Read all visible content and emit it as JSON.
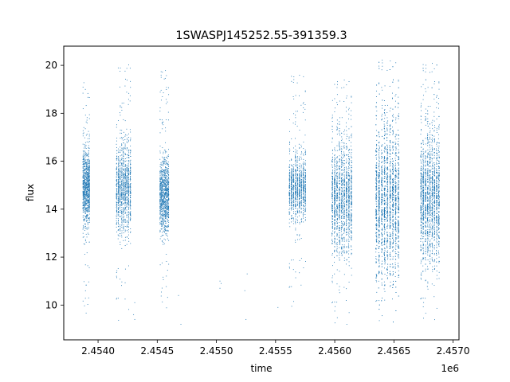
{
  "chart_data": {
    "type": "scatter",
    "title": "1SWASPJ145252.55-391359.3",
    "xlabel": "time",
    "ylabel": "flux",
    "x_offset_label": "1e6",
    "x_scale": 1000000,
    "xlim": [
      2.45371,
      2.45705
    ],
    "ylim": [
      8.55,
      20.8
    ],
    "x_ticks": [
      2.454,
      2.4545,
      2.455,
      2.4555,
      2.456,
      2.4565,
      2.457
    ],
    "x_tick_labels": [
      "2.4540",
      "2.4545",
      "2.4550",
      "2.4555",
      "2.4560",
      "2.4565",
      "2.4570"
    ],
    "y_ticks": [
      10,
      12,
      14,
      16,
      18,
      20
    ],
    "y_tick_labels": [
      "10",
      "12",
      "14",
      "16",
      "18",
      "20"
    ],
    "grid": false,
    "marker_color": "#1f77b4",
    "series": [
      {
        "clusters": [
          {
            "x_range": [
              2.45387,
              2.45393
            ],
            "center": 14.9,
            "spread": 1.0,
            "tail_low": 9.3,
            "tail_high": 19.4,
            "density": 900
          },
          {
            "x_range": [
              2.45415,
              2.45428
            ],
            "center": 14.9,
            "spread": 1.1,
            "tail_low": 9.2,
            "tail_high": 20.1,
            "density": 1200
          },
          {
            "x_range": [
              2.45452,
              2.4546
            ],
            "center": 14.6,
            "spread": 0.9,
            "tail_low": 9.8,
            "tail_high": 19.8,
            "density": 1000
          },
          {
            "x_range": [
              2.45561,
              2.45576
            ],
            "center": 14.9,
            "spread": 0.8,
            "tail_low": 9.8,
            "tail_high": 19.6,
            "density": 1100
          },
          {
            "x_range": [
              2.45597,
              2.45615
            ],
            "center": 14.5,
            "spread": 1.4,
            "tail_low": 9.1,
            "tail_high": 19.4,
            "density": 1600
          },
          {
            "x_range": [
              2.45634,
              2.45655
            ],
            "center": 14.4,
            "spread": 1.9,
            "tail_low": 9.2,
            "tail_high": 20.2,
            "density": 2400
          },
          {
            "x_range": [
              2.45672,
              2.45689
            ],
            "center": 14.5,
            "spread": 1.6,
            "tail_low": 9.3,
            "tail_high": 20.1,
            "density": 1900
          }
        ],
        "sparse_points": [
          [
            2.4543,
            9.6
          ],
          [
            2.45431,
            9.4
          ],
          [
            2.45431,
            10.1
          ],
          [
            2.45468,
            10.4
          ],
          [
            2.4547,
            9.2
          ],
          [
            2.45503,
            10.7
          ],
          [
            2.45503,
            11.0
          ],
          [
            2.45504,
            10.9
          ],
          [
            2.45524,
            10.6
          ],
          [
            2.45525,
            9.4
          ],
          [
            2.45526,
            11.3
          ],
          [
            2.45552,
            9.9
          ]
        ]
      }
    ]
  }
}
